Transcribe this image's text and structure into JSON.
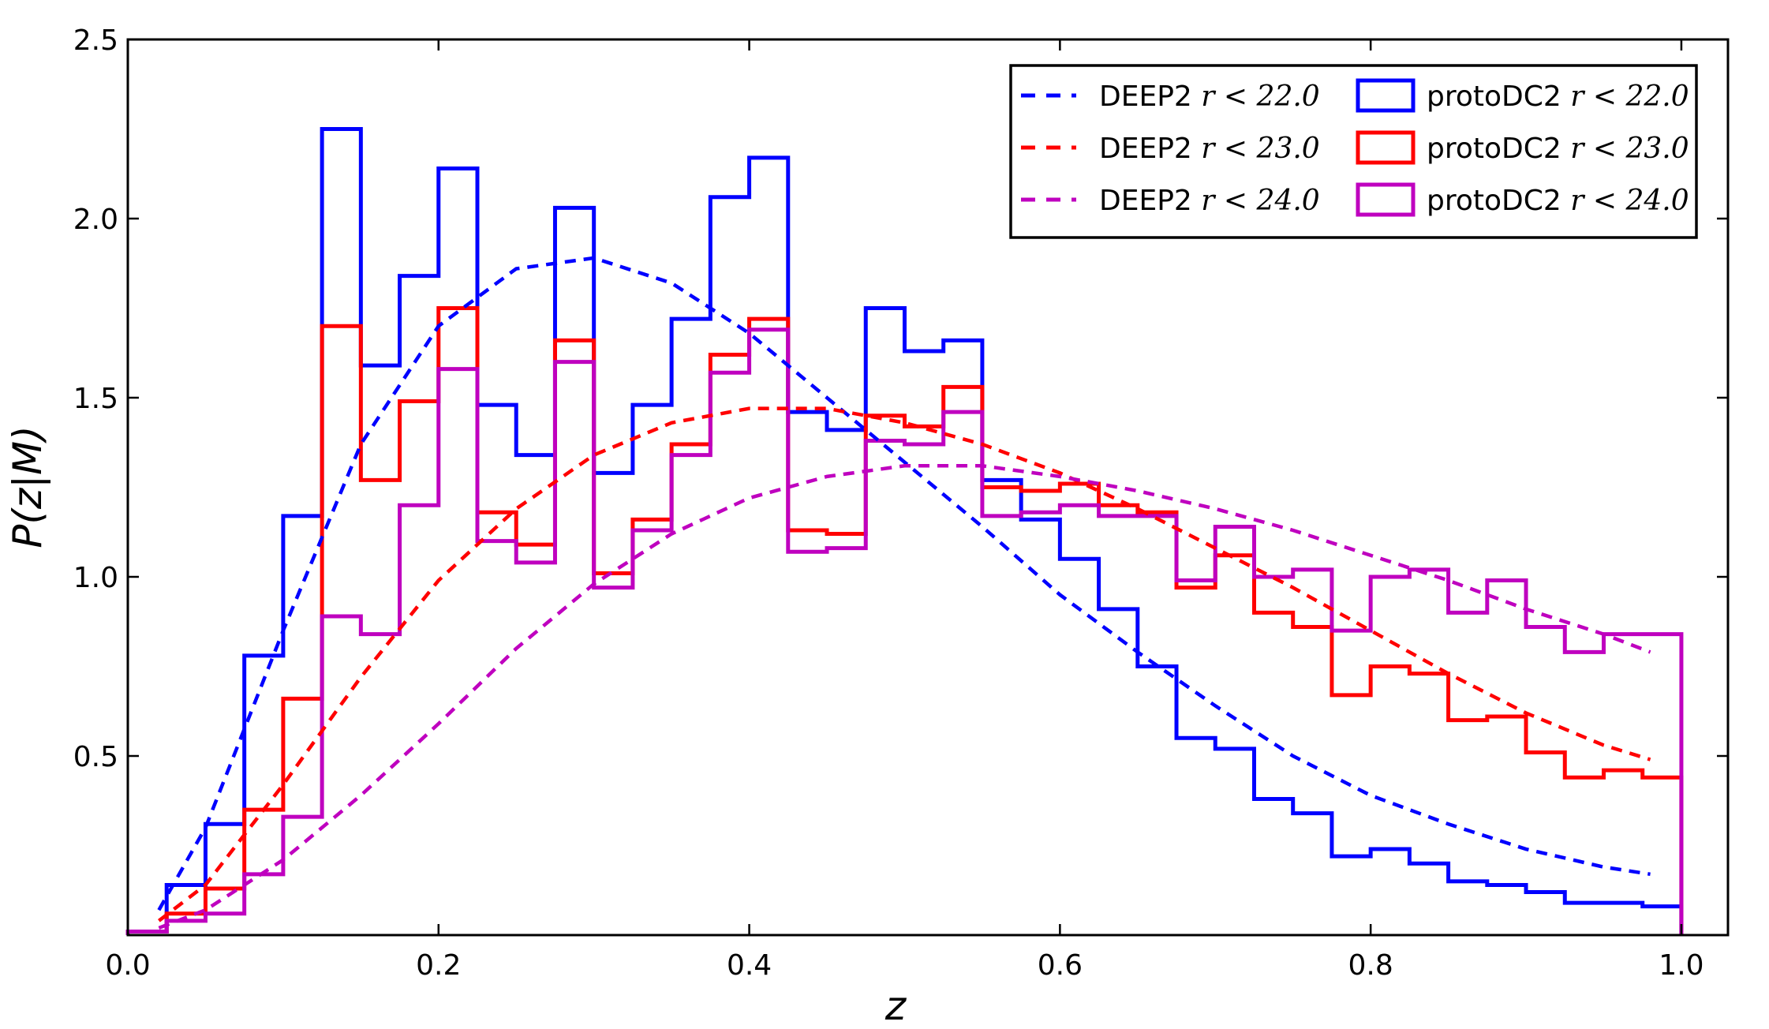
{
  "chart_data": {
    "type": "line",
    "title": "",
    "xlabel": "z",
    "ylabel": "P(z|M)",
    "xlim": [
      0.0,
      1.03
    ],
    "ylim": [
      0.0,
      2.5
    ],
    "xticks": [
      0.0,
      0.2,
      0.4,
      0.6,
      0.8,
      1.0
    ],
    "xtick_labels": [
      "0.0",
      "0.2",
      "0.4",
      "0.6",
      "0.8",
      "1.0"
    ],
    "yticks": [
      0.5,
      1.0,
      1.5,
      2.0,
      2.5
    ],
    "ytick_labels": [
      "0.5",
      "1.0",
      "1.5",
      "2.0",
      "2.5"
    ],
    "legend_position": "top-right",
    "bin_edges": [
      0.0,
      0.025,
      0.05,
      0.075,
      0.1,
      0.125,
      0.15,
      0.175,
      0.2,
      0.225,
      0.25,
      0.275,
      0.3,
      0.325,
      0.35,
      0.375,
      0.4,
      0.425,
      0.45,
      0.475,
      0.5,
      0.525,
      0.55,
      0.575,
      0.6,
      0.625,
      0.65,
      0.675,
      0.7,
      0.725,
      0.75,
      0.775,
      0.8,
      0.825,
      0.85,
      0.875,
      0.9,
      0.925,
      0.95,
      0.975,
      1.0
    ],
    "histograms": [
      {
        "name": "protoDC2",
        "cut_prefix": "r",
        "cut_op": "<",
        "cut_value": "22.0",
        "color": "#0000ff",
        "values": [
          0.01,
          0.14,
          0.31,
          0.78,
          1.17,
          2.25,
          1.59,
          1.84,
          2.14,
          1.48,
          1.34,
          2.03,
          1.29,
          1.48,
          1.72,
          2.06,
          2.17,
          1.46,
          1.41,
          1.75,
          1.63,
          1.66,
          1.27,
          1.16,
          1.05,
          0.91,
          0.75,
          0.55,
          0.52,
          0.38,
          0.34,
          0.22,
          0.24,
          0.2,
          0.15,
          0.14,
          0.12,
          0.09,
          0.09,
          0.08
        ]
      },
      {
        "name": "protoDC2",
        "cut_prefix": "r",
        "cut_op": "<",
        "cut_value": "23.0",
        "color": "#ff0000",
        "values": [
          0.01,
          0.06,
          0.13,
          0.35,
          0.66,
          1.7,
          1.27,
          1.49,
          1.75,
          1.18,
          1.09,
          1.66,
          1.01,
          1.16,
          1.37,
          1.62,
          1.72,
          1.13,
          1.12,
          1.45,
          1.42,
          1.53,
          1.25,
          1.24,
          1.26,
          1.2,
          1.18,
          0.97,
          1.06,
          0.9,
          0.86,
          0.67,
          0.75,
          0.73,
          0.6,
          0.61,
          0.51,
          0.44,
          0.46,
          0.44
        ]
      },
      {
        "name": "protoDC2",
        "cut_prefix": "r",
        "cut_op": "<",
        "cut_value": "24.0",
        "color": "#bf00bf",
        "values": [
          0.01,
          0.04,
          0.06,
          0.17,
          0.33,
          0.89,
          0.84,
          1.2,
          1.58,
          1.1,
          1.04,
          1.6,
          0.97,
          1.13,
          1.34,
          1.57,
          1.69,
          1.07,
          1.08,
          1.38,
          1.37,
          1.46,
          1.17,
          1.18,
          1.2,
          1.17,
          1.17,
          0.99,
          1.14,
          1.0,
          1.02,
          0.85,
          1.0,
          1.02,
          0.9,
          0.99,
          0.86,
          0.79,
          0.84,
          0.84
        ]
      }
    ],
    "curves": [
      {
        "name": "DEEP2",
        "cut_prefix": "r",
        "cut_op": "<",
        "cut_value": "22.0",
        "color": "#0000ff",
        "x": [
          0.02,
          0.05,
          0.1,
          0.15,
          0.2,
          0.25,
          0.3,
          0.35,
          0.4,
          0.45,
          0.5,
          0.55,
          0.6,
          0.65,
          0.7,
          0.75,
          0.8,
          0.85,
          0.9,
          0.95,
          0.98
        ],
        "y": [
          0.07,
          0.3,
          0.85,
          1.37,
          1.7,
          1.86,
          1.89,
          1.82,
          1.68,
          1.5,
          1.32,
          1.14,
          0.95,
          0.79,
          0.64,
          0.5,
          0.39,
          0.31,
          0.24,
          0.19,
          0.17
        ]
      },
      {
        "name": "DEEP2",
        "cut_prefix": "r",
        "cut_op": "<",
        "cut_value": "23.0",
        "color": "#ff0000",
        "x": [
          0.02,
          0.05,
          0.1,
          0.15,
          0.2,
          0.25,
          0.3,
          0.35,
          0.4,
          0.45,
          0.5,
          0.55,
          0.6,
          0.65,
          0.7,
          0.75,
          0.8,
          0.85,
          0.9,
          0.95,
          0.98
        ],
        "y": [
          0.04,
          0.14,
          0.42,
          0.72,
          0.99,
          1.19,
          1.34,
          1.43,
          1.47,
          1.47,
          1.43,
          1.37,
          1.29,
          1.19,
          1.08,
          0.97,
          0.85,
          0.73,
          0.62,
          0.53,
          0.49
        ]
      },
      {
        "name": "DEEP2",
        "cut_prefix": "r",
        "cut_op": "<",
        "cut_value": "24.0",
        "color": "#bf00bf",
        "x": [
          0.02,
          0.05,
          0.1,
          0.15,
          0.2,
          0.25,
          0.3,
          0.35,
          0.4,
          0.45,
          0.5,
          0.55,
          0.6,
          0.65,
          0.7,
          0.75,
          0.8,
          0.85,
          0.9,
          0.95,
          0.98
        ],
        "y": [
          0.02,
          0.07,
          0.21,
          0.39,
          0.59,
          0.8,
          0.98,
          1.12,
          1.22,
          1.28,
          1.31,
          1.31,
          1.28,
          1.24,
          1.19,
          1.13,
          1.06,
          0.99,
          0.91,
          0.84,
          0.79
        ]
      }
    ]
  }
}
